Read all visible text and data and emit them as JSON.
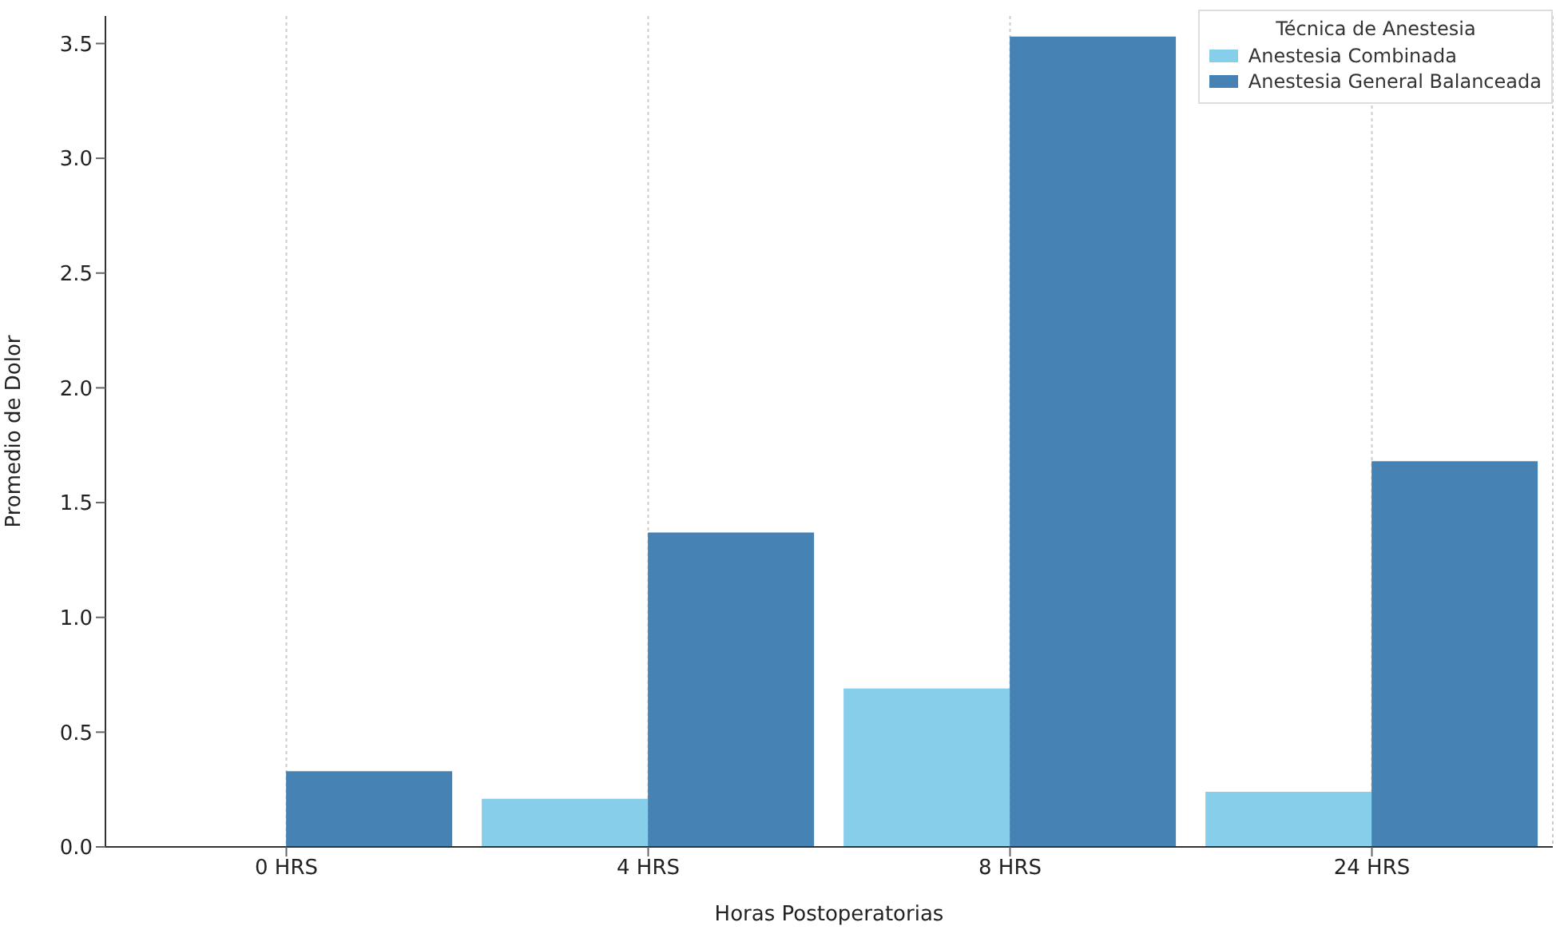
{
  "chart_data": {
    "type": "bar",
    "xlabel": "Horas Postoperatorias",
    "ylabel": "Promedio de Dolor",
    "legend_title": "Técnica de Anestesia",
    "categories": [
      "0 HRS",
      "4 HRS",
      "8 HRS",
      "24 HRS"
    ],
    "series": [
      {
        "name": "Anestesia Combinada",
        "color": "#87ceeb",
        "values": [
          0,
          0.21,
          0.69,
          0.24
        ]
      },
      {
        "name": "Anestesia General Balanceada",
        "color": "#4682b4",
        "values": [
          0.33,
          1.37,
          3.53,
          1.68
        ]
      }
    ],
    "ylim": [
      0,
      3.62
    ],
    "yticks": [
      {
        "value": 0,
        "label": "0.0"
      },
      0.5,
      {
        "value": 1,
        "label": "1.0"
      },
      1.5,
      {
        "value": 2,
        "label": "2.0"
      },
      2.5,
      {
        "value": 3,
        "label": "3.0"
      },
      3.5
    ],
    "grid": "x",
    "legend": "top right"
  }
}
